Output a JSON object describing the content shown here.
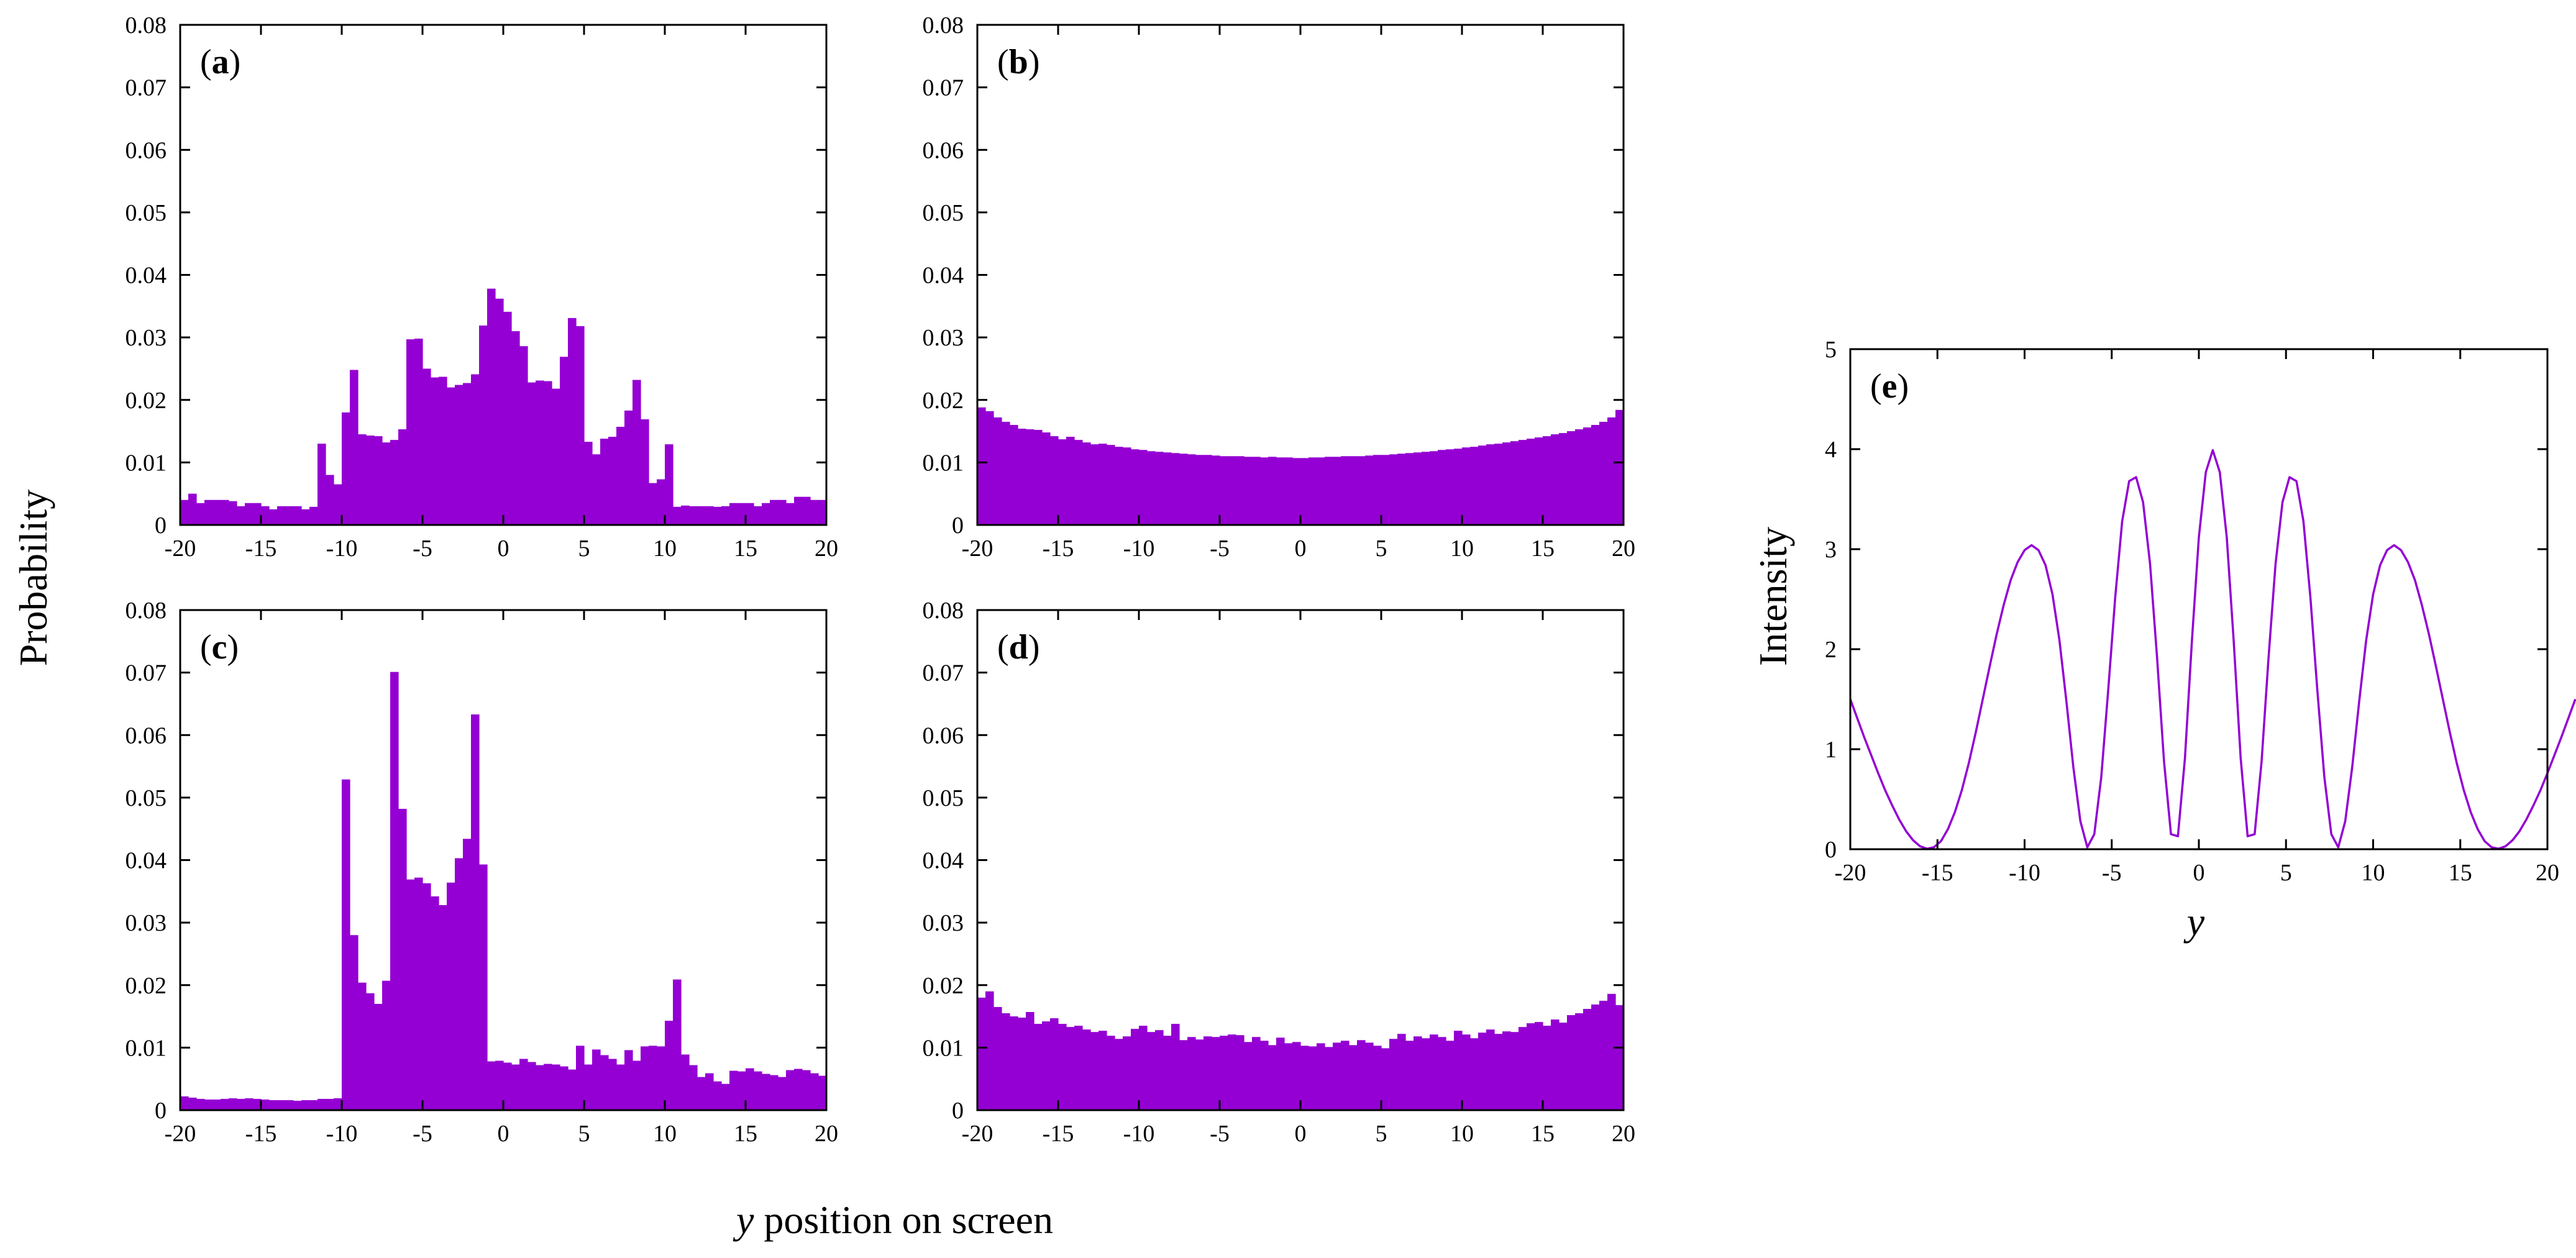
{
  "figure": {
    "ylabel_left": "Probability",
    "xlabel_bottom_italic": "y",
    "xlabel_bottom_rest": " position on screen",
    "e_ylabel": "Intensity",
    "e_xlabel": "y"
  },
  "colors": {
    "bar": "#9400D3",
    "line": "#9400D3"
  },
  "chart_data": [
    {
      "id": "a",
      "type": "bar",
      "panel_label": "a",
      "xlim": [
        -20,
        20
      ],
      "ylim": [
        0,
        0.08
      ],
      "xticks": [
        "-20",
        "-15",
        "-10",
        "-5",
        "0",
        "5",
        "10",
        "15",
        "20"
      ],
      "yticks": [
        "0",
        "0.01",
        "0.02",
        "0.03",
        "0.04",
        "0.05",
        "0.06",
        "0.07",
        "0.08"
      ],
      "bin_width": 0.5,
      "values": [
        0.004,
        0.005,
        0.0035,
        0.004,
        0.004,
        0.004,
        0.0038,
        0.003,
        0.0035,
        0.0035,
        0.003,
        0.0025,
        0.003,
        0.003,
        0.003,
        0.0025,
        0.0029,
        0.013,
        0.008,
        0.0065,
        0.018,
        0.0248,
        0.0145,
        0.0143,
        0.0142,
        0.0132,
        0.0136,
        0.0153,
        0.0297,
        0.0298,
        0.025,
        0.0236,
        0.0237,
        0.022,
        0.0224,
        0.0227,
        0.0241,
        0.0319,
        0.0378,
        0.0362,
        0.0341,
        0.031,
        0.0286,
        0.0228,
        0.0231,
        0.023,
        0.0218,
        0.0269,
        0.0331,
        0.0318,
        0.0133,
        0.0113,
        0.0138,
        0.0141,
        0.0157,
        0.0183,
        0.0232,
        0.0169,
        0.0067,
        0.0073,
        0.0129,
        0.0029,
        0.0031,
        0.003,
        0.003,
        0.003,
        0.0029,
        0.003,
        0.0035,
        0.0035,
        0.0035,
        0.003,
        0.0035,
        0.004,
        0.004,
        0.0035,
        0.0045,
        0.0045,
        0.004,
        0.004
      ]
    },
    {
      "id": "b",
      "type": "bar",
      "panel_label": "b",
      "xlim": [
        -20,
        20
      ],
      "ylim": [
        0,
        0.08
      ],
      "xticks": [
        "-20",
        "-15",
        "-10",
        "-5",
        "0",
        "5",
        "10",
        "15",
        "20"
      ],
      "yticks": [
        "0",
        "0.01",
        "0.02",
        "0.03",
        "0.04",
        "0.05",
        "0.06",
        "0.07",
        "0.08"
      ],
      "bin_width": 0.5,
      "values": [
        0.0188,
        0.0182,
        0.0172,
        0.0165,
        0.016,
        0.0154,
        0.0153,
        0.0152,
        0.0148,
        0.0142,
        0.0137,
        0.0141,
        0.0136,
        0.0132,
        0.0129,
        0.013,
        0.0128,
        0.0125,
        0.0124,
        0.0121,
        0.012,
        0.0118,
        0.0117,
        0.0116,
        0.0115,
        0.0114,
        0.0113,
        0.0112,
        0.0112,
        0.0111,
        0.011,
        0.011,
        0.011,
        0.0109,
        0.0109,
        0.0108,
        0.0109,
        0.0108,
        0.0108,
        0.0107,
        0.0107,
        0.0108,
        0.0108,
        0.0109,
        0.0109,
        0.011,
        0.011,
        0.011,
        0.0111,
        0.0112,
        0.0112,
        0.0113,
        0.0114,
        0.0115,
        0.0116,
        0.0117,
        0.0118,
        0.012,
        0.0121,
        0.0122,
        0.0124,
        0.0125,
        0.0127,
        0.0129,
        0.013,
        0.0132,
        0.0134,
        0.0136,
        0.0138,
        0.014,
        0.0142,
        0.0145,
        0.0147,
        0.015,
        0.0153,
        0.0156,
        0.016,
        0.0165,
        0.0172,
        0.0184
      ]
    },
    {
      "id": "c",
      "type": "bar",
      "panel_label": "c",
      "xlim": [
        -20,
        20
      ],
      "ylim": [
        0,
        0.08
      ],
      "xticks": [
        "-20",
        "-15",
        "-10",
        "-5",
        "0",
        "5",
        "10",
        "15",
        "20"
      ],
      "yticks": [
        "0",
        "0.01",
        "0.02",
        "0.03",
        "0.04",
        "0.05",
        "0.06",
        "0.07",
        "0.08"
      ],
      "bin_width": 0.5,
      "values": [
        0.0022,
        0.002,
        0.0018,
        0.0017,
        0.0017,
        0.0018,
        0.0019,
        0.0018,
        0.0019,
        0.0018,
        0.0017,
        0.0016,
        0.0016,
        0.0016,
        0.0015,
        0.0016,
        0.0016,
        0.0018,
        0.0018,
        0.0019,
        0.0529,
        0.028,
        0.0204,
        0.0187,
        0.017,
        0.0207,
        0.0701,
        0.0482,
        0.0369,
        0.0372,
        0.0363,
        0.0342,
        0.0328,
        0.0364,
        0.0403,
        0.0434,
        0.0633,
        0.0393,
        0.0078,
        0.0079,
        0.0076,
        0.0073,
        0.0082,
        0.0077,
        0.0072,
        0.0074,
        0.0073,
        0.007,
        0.0065,
        0.0103,
        0.0073,
        0.0097,
        0.0088,
        0.0082,
        0.0073,
        0.0096,
        0.0079,
        0.0102,
        0.0103,
        0.0102,
        0.0143,
        0.0209,
        0.0089,
        0.0072,
        0.0053,
        0.0059,
        0.0046,
        0.0042,
        0.0063,
        0.0062,
        0.0067,
        0.0062,
        0.0058,
        0.0056,
        0.0053,
        0.0064,
        0.0066,
        0.0064,
        0.0059,
        0.0055
      ]
    },
    {
      "id": "d",
      "type": "bar",
      "panel_label": "d",
      "xlim": [
        -20,
        20
      ],
      "ylim": [
        0,
        0.08
      ],
      "xticks": [
        "-20",
        "-15",
        "-10",
        "-5",
        "0",
        "5",
        "10",
        "15",
        "20"
      ],
      "yticks": [
        "0",
        "0.01",
        "0.02",
        "0.03",
        "0.04",
        "0.05",
        "0.06",
        "0.07",
        "0.08"
      ],
      "bin_width": 0.5,
      "values": [
        0.018,
        0.019,
        0.0165,
        0.0155,
        0.015,
        0.0148,
        0.0157,
        0.0138,
        0.0142,
        0.0147,
        0.0138,
        0.0133,
        0.0135,
        0.0129,
        0.0125,
        0.0127,
        0.0119,
        0.0114,
        0.0118,
        0.013,
        0.0135,
        0.0125,
        0.0128,
        0.0119,
        0.0138,
        0.0112,
        0.0117,
        0.0113,
        0.0118,
        0.0117,
        0.0119,
        0.0121,
        0.012,
        0.0109,
        0.0117,
        0.0111,
        0.0104,
        0.0116,
        0.0107,
        0.0109,
        0.0103,
        0.0102,
        0.0107,
        0.0101,
        0.0108,
        0.0111,
        0.0104,
        0.0112,
        0.0108,
        0.0103,
        0.0099,
        0.0114,
        0.0122,
        0.0111,
        0.0118,
        0.0115,
        0.0121,
        0.0117,
        0.0111,
        0.0127,
        0.0121,
        0.0115,
        0.0124,
        0.0129,
        0.0122,
        0.0126,
        0.0125,
        0.0133,
        0.0139,
        0.0141,
        0.0135,
        0.0145,
        0.014,
        0.0152,
        0.0155,
        0.0162,
        0.0169,
        0.0175,
        0.0186,
        0.0168
      ]
    },
    {
      "id": "e",
      "type": "line",
      "panel_label": "e",
      "xlabel": "y",
      "ylabel": "Intensity",
      "xlim": [
        -20,
        20
      ],
      "ylim": [
        0,
        5
      ],
      "xticks": [
        "-20",
        "-15",
        "-10",
        "-5",
        "0",
        "5",
        "10",
        "15",
        "20"
      ],
      "yticks": [
        "0",
        "1",
        "2",
        "3",
        "4",
        "5"
      ],
      "x_step": 0.4,
      "y": [
        1.5,
        1.31,
        1.12,
        0.94,
        0.76,
        0.59,
        0.44,
        0.3,
        0.18,
        0.09,
        0.03,
        0.005,
        0.02,
        0.08,
        0.2,
        0.37,
        0.59,
        0.86,
        1.17,
        1.5,
        1.83,
        2.15,
        2.44,
        2.69,
        2.87,
        2.99,
        3.04,
        2.99,
        2.84,
        2.55,
        2.09,
        1.48,
        0.82,
        0.28,
        0.02,
        0.15,
        0.72,
        1.59,
        2.52,
        3.28,
        3.68,
        3.72,
        3.47,
        2.85,
        1.92,
        0.88,
        0.15,
        0.13,
        0.91,
        2.08,
        3.12,
        3.77,
        3.99,
        3.77,
        3.12,
        2.08,
        0.91,
        0.13,
        0.15,
        0.88,
        1.92,
        2.85,
        3.47,
        3.72,
        3.68,
        3.28,
        2.52,
        1.59,
        0.72,
        0.15,
        0.02,
        0.28,
        0.82,
        1.48,
        2.09,
        2.55,
        2.84,
        2.99,
        3.04,
        2.99,
        2.87,
        2.69,
        2.44,
        2.15,
        1.83,
        1.5,
        1.17,
        0.86,
        0.59,
        0.37,
        0.2,
        0.08,
        0.02,
        0.005,
        0.03,
        0.09,
        0.18,
        0.3,
        0.44,
        0.59,
        0.76,
        0.94,
        1.12,
        1.31,
        1.5
      ]
    }
  ]
}
